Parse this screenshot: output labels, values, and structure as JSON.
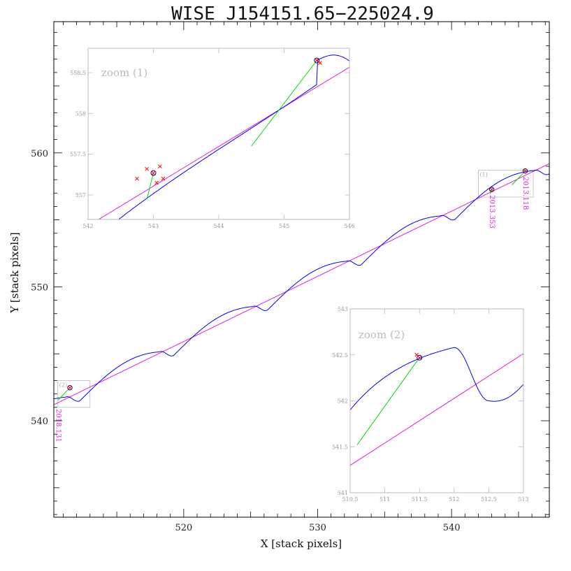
{
  "chart_data": [
    {
      "type": "line",
      "title": "WISE J154151.65−225024.9",
      "xlabel": "X [stack pixels]",
      "ylabel": "Y [stack pixels]",
      "xlim": [
        510.3,
        547.3
      ],
      "ylim": [
        532.8,
        569.8
      ],
      "xticks": [
        520,
        530,
        540
      ],
      "yticks": [
        540,
        550,
        560
      ],
      "xtick_labels": [
        "520",
        "530",
        "540"
      ],
      "ytick_labels": [
        "540",
        "550",
        "560"
      ],
      "series": [
        {
          "role": "model-track",
          "color": "#0000ff",
          "x": [
            510.3,
            540.1,
            541.5,
            545.9,
            546.5,
            547.3
          ],
          "y": [
            541.7,
            555.9,
            555.6,
            558.6,
            558.0,
            558.8
          ]
        },
        {
          "role": "proper-motion-line",
          "color": "#e020e0",
          "x": [
            510.3,
            547.3
          ],
          "y": [
            541.2,
            559.2
          ]
        },
        {
          "role": "parallax-offset",
          "color": "#00dd00",
          "x": [
            510.6,
            511.5
          ],
          "y": [
            541.52,
            542.47
          ]
        },
        {
          "role": "parallax-offset",
          "color": "#00dd00",
          "x": [
            542.9,
            543.0
          ],
          "y": [
            556.95,
            557.27
          ]
        },
        {
          "role": "parallax-offset",
          "color": "#00dd00",
          "x": [
            544.5,
            545.5
          ],
          "y": [
            557.6,
            558.65
          ]
        }
      ],
      "measured_points": [
        {
          "x": 511.5,
          "y": 542.47
        },
        {
          "x": 543.0,
          "y": 557.27
        },
        {
          "x": 545.5,
          "y": 558.65
        }
      ],
      "epoch_labels": [
        {
          "text": "2018.131",
          "x": 510.6
        },
        {
          "text": "2013.353",
          "x": 543.0
        },
        {
          "text": "2013.118",
          "x": 545.5
        }
      ],
      "zoom_box_labels": [
        "(1)",
        "(2)"
      ],
      "grid": false
    },
    {
      "type": "line",
      "title": "zoom (1)",
      "xlim": [
        542,
        546
      ],
      "ylim": [
        556.7,
        558.8
      ],
      "xticks": [
        542,
        543,
        544,
        545,
        546
      ],
      "yticks": [
        557,
        557.5,
        558,
        558.5
      ],
      "xtick_labels": [
        "542",
        "543",
        "544",
        "545",
        "546"
      ],
      "ytick_labels": [
        "557",
        "557.5",
        "558",
        "558.5"
      ]
    },
    {
      "type": "line",
      "title": "zoom (2)",
      "xlim": [
        510.5,
        513
      ],
      "ylim": [
        541,
        543
      ],
      "xticks": [
        510.5,
        511,
        511.5,
        512,
        512.5,
        513
      ],
      "yticks": [
        541,
        541.5,
        542,
        542.5,
        543
      ],
      "xtick_labels": [
        "510.5",
        "511",
        "511.5",
        "512",
        "512.5",
        "513"
      ],
      "ytick_labels": [
        "541",
        "541.5",
        "542",
        "542.5",
        "543"
      ]
    }
  ]
}
